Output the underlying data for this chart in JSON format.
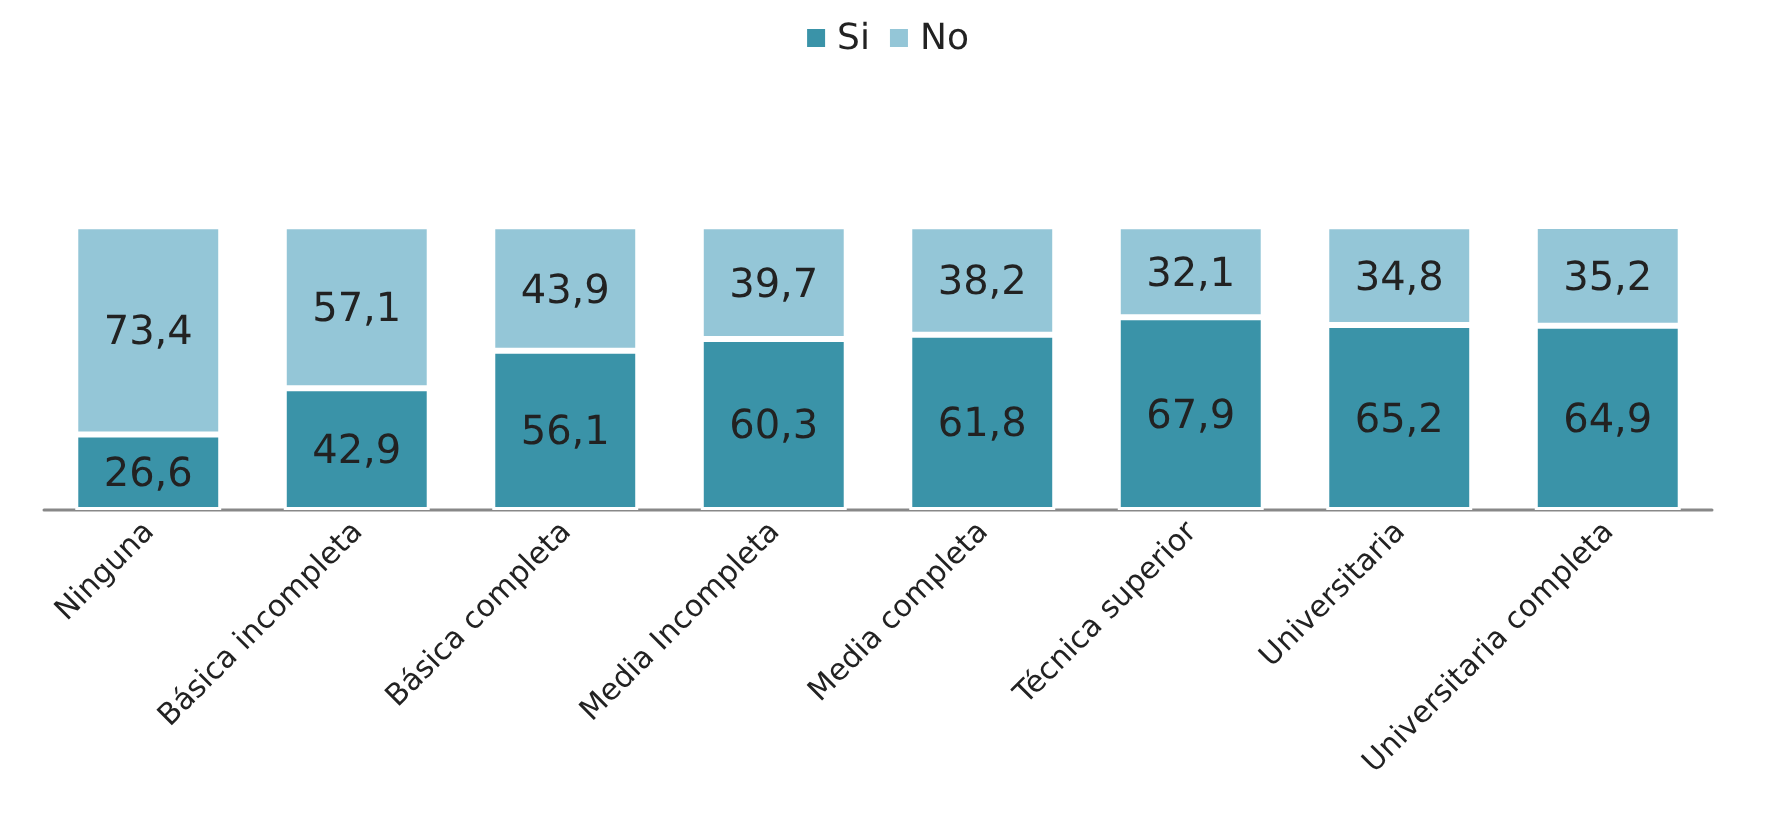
{
  "chart_data": {
    "type": "bar",
    "stacked": true,
    "categories": [
      "Ninguna",
      "Básica incompleta",
      "Básica completa",
      "Media Incompleta",
      "Media completa",
      "Técnica superior",
      "Universitaria",
      "Universitaria completa"
    ],
    "series": [
      {
        "name": "Si",
        "color": "#3a93a8",
        "values": [
          26.6,
          42.9,
          56.1,
          60.3,
          61.8,
          67.9,
          65.2,
          64.9
        ],
        "value_labels": [
          "26,6",
          "42,9",
          "56,1",
          "60,3",
          "61,8",
          "67,9",
          "65,2",
          "64,9"
        ]
      },
      {
        "name": "No",
        "color": "#94c6d7",
        "values": [
          73.4,
          57.1,
          43.9,
          39.7,
          38.2,
          32.1,
          34.8,
          35.2
        ],
        "value_labels": [
          "73,4",
          "57,1",
          "43,9",
          "39,7",
          "38,2",
          "32,1",
          "34,8",
          "35,2"
        ]
      }
    ],
    "legend": "top"
  }
}
